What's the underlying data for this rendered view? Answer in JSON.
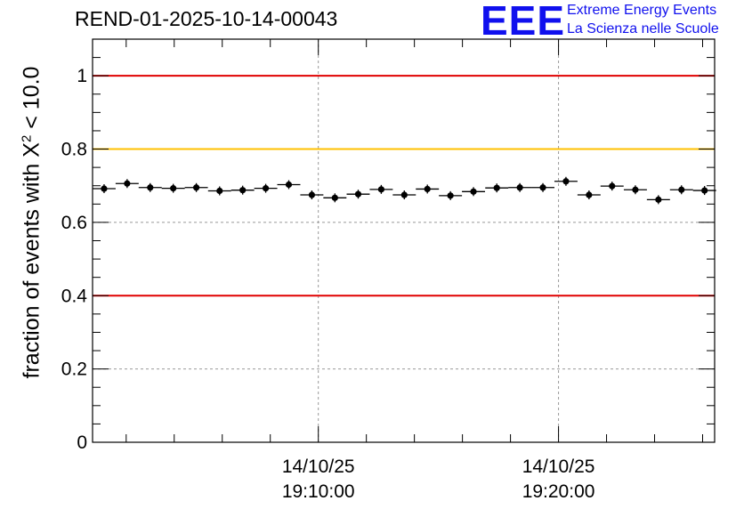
{
  "header": {
    "title": "REND-01-2025-10-14-00043",
    "logo_text": "EEE",
    "logo_line1": "Extreme Energy Events",
    "logo_line2": "La Scienza nelle Scuole"
  },
  "axis": {
    "ylabel_prefix": "fraction of events with ",
    "ylabel_symbol": "X",
    "ylabel_sup": "2",
    "ylabel_suffix": " < 10.0"
  },
  "colors": {
    "red_line": "#e00000",
    "yellow_line": "#ffc000",
    "grid": "#999999",
    "logo": "#1010ee"
  },
  "chart_data": {
    "type": "scatter",
    "title": "REND-01-2025-10-14-00043",
    "ylabel": "fraction of events with X^2 < 10.0",
    "xlabel": "",
    "ylim": [
      0,
      1.1
    ],
    "xlim_minutes": [
      -9.4,
      16.5
    ],
    "yticks": [
      0,
      0.2,
      0.4,
      0.6,
      0.8,
      1
    ],
    "ytick_labels": [
      "0",
      "0.2",
      "0.4",
      "0.6",
      "0.8",
      "1"
    ],
    "xticks": [
      {
        "minutes": 0,
        "label_date": "14/10/25",
        "label_time": "19:10:00"
      },
      {
        "minutes": 10,
        "label_date": "14/10/25",
        "label_time": "19:20:00"
      }
    ],
    "reference_lines": [
      {
        "y": 1.0,
        "color": "red"
      },
      {
        "y": 0.8,
        "color": "yellow"
      },
      {
        "y": 0.4,
        "color": "red"
      }
    ],
    "bin_width_minutes": 0.9615,
    "x_minutes": [
      -8.92,
      -7.96,
      -7.0,
      -6.04,
      -5.08,
      -4.11,
      -3.15,
      -2.19,
      -1.23,
      -0.27,
      0.69,
      1.66,
      2.62,
      3.58,
      4.54,
      5.5,
      6.46,
      7.43,
      8.39,
      9.35,
      10.31,
      11.27,
      12.23,
      13.2,
      14.16,
      15.12,
      16.08
    ],
    "values": [
      0.692,
      0.706,
      0.695,
      0.693,
      0.695,
      0.686,
      0.688,
      0.693,
      0.703,
      0.675,
      0.667,
      0.677,
      0.69,
      0.675,
      0.691,
      0.673,
      0.684,
      0.694,
      0.695,
      0.695,
      0.712,
      0.675,
      0.699,
      0.689,
      0.662,
      0.689,
      0.687
    ]
  }
}
